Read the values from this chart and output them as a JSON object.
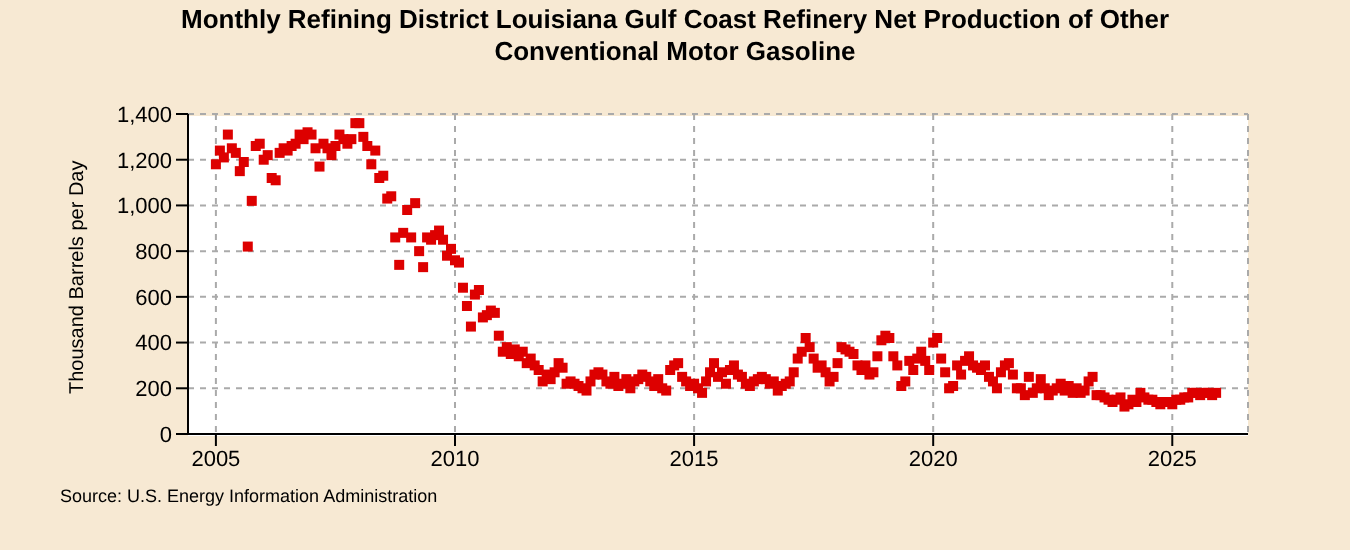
{
  "chart_data": {
    "type": "scatter",
    "title": "Monthly Refining District Louisiana Gulf Coast Refinery Net Production of Other Conventional Motor Gasoline",
    "ylabel": "Thousand Barrels per Day",
    "annotations": [
      "Source: U.S. Energy Information Administration"
    ],
    "x": [
      "2005-01",
      "2005-02",
      "2005-03",
      "2005-04",
      "2005-05",
      "2005-06",
      "2005-07",
      "2005-08",
      "2005-09",
      "2005-10",
      "2005-11",
      "2005-12",
      "2006-01",
      "2006-02",
      "2006-03",
      "2006-04",
      "2006-05",
      "2006-06",
      "2006-07",
      "2006-08",
      "2006-09",
      "2006-10",
      "2006-11",
      "2006-12",
      "2007-01",
      "2007-02",
      "2007-03",
      "2007-04",
      "2007-05",
      "2007-06",
      "2007-07",
      "2007-08",
      "2007-09",
      "2007-10",
      "2007-11",
      "2007-12",
      "2008-01",
      "2008-02",
      "2008-03",
      "2008-04",
      "2008-05",
      "2008-06",
      "2008-07",
      "2008-08",
      "2008-09",
      "2008-10",
      "2008-11",
      "2008-12",
      "2009-01",
      "2009-02",
      "2009-03",
      "2009-04",
      "2009-05",
      "2009-06",
      "2009-07",
      "2009-08",
      "2009-09",
      "2009-10",
      "2009-11",
      "2009-12",
      "2010-01",
      "2010-02",
      "2010-03",
      "2010-04",
      "2010-05",
      "2010-06",
      "2010-07",
      "2010-08",
      "2010-09",
      "2010-10",
      "2010-11",
      "2010-12",
      "2011-01",
      "2011-02",
      "2011-03",
      "2011-04",
      "2011-05",
      "2011-06",
      "2011-07",
      "2011-08",
      "2011-09",
      "2011-10",
      "2011-11",
      "2011-12",
      "2012-01",
      "2012-02",
      "2012-03",
      "2012-04",
      "2012-05",
      "2012-06",
      "2012-07",
      "2012-08",
      "2012-09",
      "2012-10",
      "2012-11",
      "2012-12",
      "2013-01",
      "2013-02",
      "2013-03",
      "2013-04",
      "2013-05",
      "2013-06",
      "2013-07",
      "2013-08",
      "2013-09",
      "2013-10",
      "2013-11",
      "2013-12",
      "2014-01",
      "2014-02",
      "2014-03",
      "2014-04",
      "2014-05",
      "2014-06",
      "2014-07",
      "2014-08",
      "2014-09",
      "2014-10",
      "2014-11",
      "2014-12",
      "2015-01",
      "2015-02",
      "2015-03",
      "2015-04",
      "2015-05",
      "2015-06",
      "2015-07",
      "2015-08",
      "2015-09",
      "2015-10",
      "2015-11",
      "2015-12",
      "2016-01",
      "2016-02",
      "2016-03",
      "2016-04",
      "2016-05",
      "2016-06",
      "2016-07",
      "2016-08",
      "2016-09",
      "2016-10",
      "2016-11",
      "2016-12",
      "2017-01",
      "2017-02",
      "2017-03",
      "2017-04",
      "2017-05",
      "2017-06",
      "2017-07",
      "2017-08",
      "2017-09",
      "2017-10",
      "2017-11",
      "2017-12",
      "2018-01",
      "2018-02",
      "2018-03",
      "2018-04",
      "2018-05",
      "2018-06",
      "2018-07",
      "2018-08",
      "2018-09",
      "2018-10",
      "2018-11",
      "2018-12",
      "2019-01",
      "2019-02",
      "2019-03",
      "2019-04",
      "2019-05",
      "2019-06",
      "2019-07",
      "2019-08",
      "2019-09",
      "2019-10",
      "2019-11",
      "2019-12",
      "2020-01",
      "2020-02",
      "2020-03",
      "2020-04",
      "2020-05",
      "2020-06",
      "2020-07",
      "2020-08",
      "2020-09",
      "2020-10",
      "2020-11",
      "2020-12",
      "2021-01",
      "2021-02",
      "2021-03",
      "2021-04",
      "2021-05",
      "2021-06",
      "2021-07",
      "2021-08",
      "2021-09",
      "2021-10",
      "2021-11",
      "2021-12",
      "2022-01",
      "2022-02",
      "2022-03",
      "2022-04",
      "2022-05",
      "2022-06",
      "2022-07",
      "2022-08",
      "2022-09",
      "2022-10",
      "2022-11",
      "2022-12",
      "2023-01",
      "2023-02",
      "2023-03",
      "2023-04",
      "2023-05",
      "2023-06",
      "2023-07",
      "2023-08",
      "2023-09",
      "2023-10",
      "2023-11",
      "2023-12",
      "2024-01",
      "2024-02",
      "2024-03",
      "2024-04",
      "2024-05",
      "2024-06",
      "2024-07",
      "2024-08",
      "2024-09",
      "2024-10",
      "2024-11",
      "2024-12",
      "2025-01",
      "2025-02",
      "2025-03",
      "2025-04",
      "2025-05",
      "2025-06",
      "2025-07",
      "2025-08",
      "2025-09",
      "2025-10",
      "2025-11",
      "2025-12"
    ],
    "series": [
      {
        "color": "#dd0000",
        "values": [
          1180,
          1240,
          1210,
          1310,
          1250,
          1230,
          1150,
          1190,
          820,
          1020,
          1260,
          1270,
          1200,
          1220,
          1120,
          1110,
          1230,
          1250,
          1240,
          1260,
          1270,
          1310,
          1290,
          1320,
          1310,
          1250,
          1170,
          1270,
          1250,
          1220,
          1260,
          1310,
          1290,
          1270,
          1290,
          1360,
          1360,
          1300,
          1260,
          1180,
          1240,
          1120,
          1130,
          1030,
          1040,
          860,
          740,
          880,
          980,
          860,
          1010,
          800,
          730,
          860,
          850,
          870,
          890,
          850,
          780,
          810,
          760,
          750,
          640,
          560,
          470,
          610,
          630,
          510,
          520,
          540,
          530,
          430,
          360,
          380,
          350,
          370,
          340,
          360,
          310,
          330,
          300,
          280,
          230,
          260,
          240,
          270,
          310,
          290,
          220,
          230,
          220,
          210,
          200,
          190,
          230,
          260,
          270,
          260,
          230,
          220,
          250,
          210,
          220,
          240,
          200,
          230,
          240,
          260,
          250,
          230,
          210,
          240,
          200,
          190,
          280,
          300,
          310,
          250,
          230,
          210,
          220,
          200,
          180,
          230,
          270,
          310,
          250,
          270,
          220,
          280,
          300,
          260,
          250,
          220,
          210,
          230,
          240,
          250,
          240,
          220,
          230,
          190,
          210,
          220,
          230,
          270,
          330,
          360,
          420,
          380,
          330,
          290,
          300,
          270,
          230,
          250,
          310,
          380,
          370,
          360,
          350,
          300,
          280,
          300,
          260,
          270,
          340,
          410,
          430,
          420,
          340,
          300,
          210,
          230,
          320,
          280,
          330,
          360,
          320,
          280,
          400,
          420,
          330,
          270,
          200,
          210,
          300,
          260,
          320,
          340,
          300,
          290,
          280,
          300,
          250,
          230,
          200,
          270,
          300,
          310,
          260,
          200,
          200,
          170,
          250,
          180,
          200,
          240,
          200,
          170,
          190,
          200,
          220,
          190,
          210,
          180,
          200,
          180,
          190,
          230,
          250,
          170,
          170,
          160,
          150,
          140,
          150,
          160,
          120,
          130,
          150,
          140,
          180,
          160,
          150,
          150,
          140,
          130,
          140,
          140,
          130,
          150,
          150,
          160,
          160,
          180,
          180,
          170,
          180,
          180,
          170,
          180
        ]
      }
    ],
    "xlim": [
      "2004-06",
      "2026-08"
    ],
    "xticks": [
      "2005",
      "2010",
      "2015",
      "2020",
      "2025"
    ],
    "ylim": [
      0,
      1400
    ],
    "yticks": [
      0,
      200,
      400,
      600,
      800,
      {
        "value": 1000,
        "label": "1,000"
      },
      {
        "value": 1200,
        "label": "1,200"
      },
      {
        "value": 1400,
        "label": "1,400"
      }
    ],
    "grid": true,
    "marker": "square"
  }
}
